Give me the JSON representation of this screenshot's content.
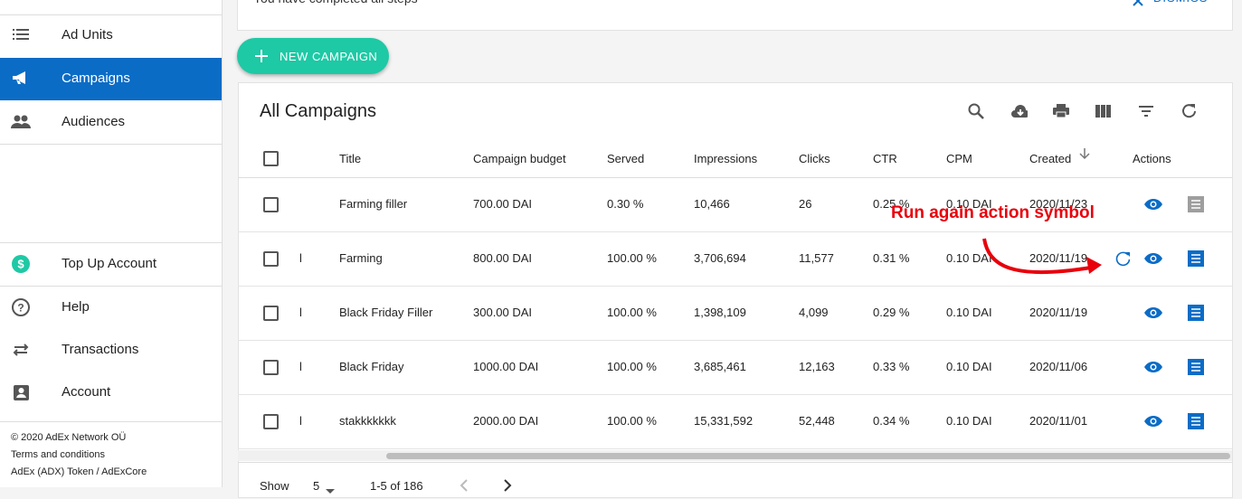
{
  "notice": {
    "text": "You have completed all steps",
    "dismiss": "DISMISS"
  },
  "sidebar": {
    "items": [
      "Ad Units",
      "Campaigns",
      "Audiences",
      "Top Up Account",
      "Help",
      "Transactions",
      "Account"
    ],
    "selected": "Campaigns",
    "footer": [
      "© 2020  AdEx Network OÜ",
      "Terms and conditions",
      "AdEx (ADX) Token / AdExCore"
    ]
  },
  "new_campaign": "NEW CAMPAIGN",
  "table": {
    "title": "All Campaigns",
    "columns": [
      "Title",
      "Campaign budget",
      "Served",
      "Impressions",
      "Clicks",
      "CTR",
      "CPM",
      "Created",
      "Actions"
    ],
    "rows": [
      [
        "",
        "Farming filler",
        "700.00 DAI",
        "0.30 %",
        "10,466",
        "26",
        "0.25 %",
        "0.10 DAI",
        "2020/11/23"
      ],
      [
        "l",
        "Farming",
        "800.00 DAI",
        "100.00 %",
        "3,706,694",
        "11,577",
        "0.31 %",
        "0.10 DAI",
        "2020/11/19"
      ],
      [
        "l",
        "Black Friday Filler",
        "300.00 DAI",
        "100.00 %",
        "1,398,109",
        "4,099",
        "0.29 %",
        "0.10 DAI",
        "2020/11/19"
      ],
      [
        "l",
        "Black Friday",
        "1000.00 DAI",
        "100.00 %",
        "3,685,461",
        "12,163",
        "0.33 %",
        "0.10 DAI",
        "2020/11/06"
      ],
      [
        "l",
        "stakkkkkkk",
        "2000.00 DAI",
        "100.00 %",
        "15,331,592",
        "52,448",
        "0.34 %",
        "0.10 DAI",
        "2020/11/01"
      ]
    ]
  },
  "pagination": {
    "show": "Show",
    "per_page": "5",
    "range": "1-5 of 186"
  },
  "annotation": "Run again action symbol"
}
